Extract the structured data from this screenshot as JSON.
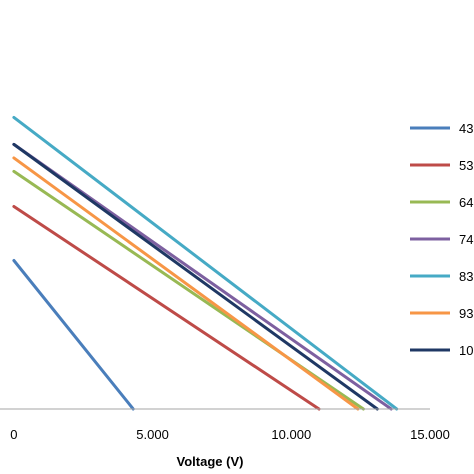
{
  "chart_data": {
    "type": "line",
    "title": "",
    "xlabel": "Voltage (V)",
    "ylabel": "",
    "xlim": [
      -0.5,
      15.0
    ],
    "x_ticks": [
      "0",
      "5.000",
      "10.000",
      "15.000"
    ],
    "x_tick_values": [
      0,
      5,
      10,
      15
    ],
    "grid": false,
    "legend_position": "right",
    "series": [
      {
        "name": "43",
        "color": "#4a7ebb",
        "x": [
          0,
          4.3
        ],
        "y": [
          0.55,
          0
        ]
      },
      {
        "name": "53",
        "color": "#be4b48",
        "x": [
          0,
          11.0
        ],
        "y": [
          0.75,
          0
        ]
      },
      {
        "name": "64",
        "color": "#98b954",
        "x": [
          0,
          12.6
        ],
        "y": [
          0.88,
          0
        ]
      },
      {
        "name": "74",
        "color": "#7d60a0",
        "x": [
          0,
          13.6
        ],
        "y": [
          0.98,
          0
        ]
      },
      {
        "name": "83",
        "color": "#46aac5",
        "x": [
          0,
          13.8
        ],
        "y": [
          1.08,
          0
        ]
      },
      {
        "name": "93",
        "color": "#f79646",
        "x": [
          0,
          12.4
        ],
        "y": [
          0.93,
          0
        ]
      },
      {
        "name": "10",
        "color": "#1f3864",
        "x": [
          0,
          13.1
        ],
        "y": [
          0.98,
          0
        ]
      }
    ]
  }
}
